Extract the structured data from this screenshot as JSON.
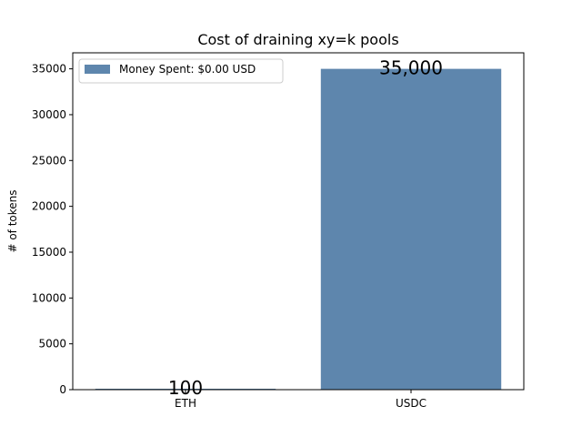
{
  "chart_data": {
    "type": "bar",
    "title": "Cost of draining xy=k pools",
    "xlabel": "",
    "ylabel": "# of tokens",
    "categories": [
      "ETH",
      "USDC"
    ],
    "series": [
      {
        "name": "Money Spent: $0.00 USD",
        "values": [
          100,
          35000
        ],
        "color": "#5e86ad"
      }
    ],
    "data_labels": [
      "100",
      "35,000"
    ],
    "ylim": [
      0,
      36750
    ],
    "yticks": [
      0,
      5000,
      10000,
      15000,
      20000,
      25000,
      30000,
      35000
    ],
    "legend_position": "upper-left",
    "grid": false
  }
}
